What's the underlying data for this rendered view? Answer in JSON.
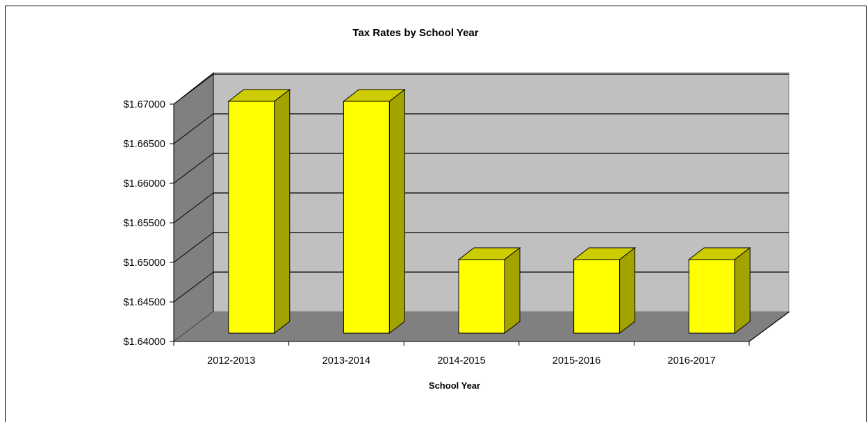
{
  "chart_data": {
    "type": "bar",
    "title": "Tax Rates by School Year",
    "xlabel": "School Year",
    "ylabel": "",
    "categories": [
      "2012-2013",
      "2013-2014",
      "2014-2015",
      "2015-2016",
      "2016-2017"
    ],
    "values": [
      1.67,
      1.67,
      1.65,
      1.65,
      1.65
    ],
    "ylim": [
      1.64,
      1.67
    ],
    "yticks": [
      "$1.64000",
      "$1.64500",
      "$1.65000",
      "$1.65500",
      "$1.66000",
      "$1.66500",
      "$1.67000"
    ],
    "grid": true,
    "legend": "none",
    "style": "3d",
    "colors": {
      "bar_front": "#ffff00",
      "bar_top": "#cccc00",
      "bar_side": "#a3a300",
      "back_wall": "#c0c0c0",
      "side_wall": "#808080",
      "floor": "#808080"
    }
  }
}
